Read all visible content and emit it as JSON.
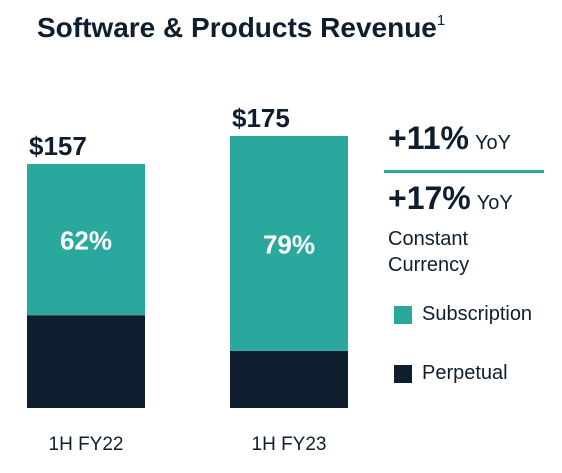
{
  "title": "Software & Products Revenue",
  "title_footnote": "1",
  "chart_data": {
    "type": "bar",
    "stacked": true,
    "categories": [
      "1H FY22",
      "1H FY23"
    ],
    "totals": [
      157,
      175
    ],
    "total_labels": [
      "$157",
      "$175"
    ],
    "series": [
      {
        "name": "Subscription",
        "values": [
          97.3,
          138.3
        ],
        "share_labels": [
          "62%",
          "79%"
        ],
        "color": "#2ba89e"
      },
      {
        "name": "Perpetual",
        "values": [
          59.7,
          36.7
        ],
        "color": "#0f1e2e"
      }
    ],
    "ylim": [
      0,
      175
    ]
  },
  "growth": [
    {
      "value": "+11%",
      "label": "YoY"
    },
    {
      "value": "+17%",
      "label": "YoY"
    }
  ],
  "constant_currency": {
    "line1": "Constant",
    "line2": "Currency"
  },
  "legend": [
    {
      "label": "Subscription",
      "color": "#2ba89e"
    },
    {
      "label": "Perpetual",
      "color": "#0f1e2e"
    }
  ]
}
